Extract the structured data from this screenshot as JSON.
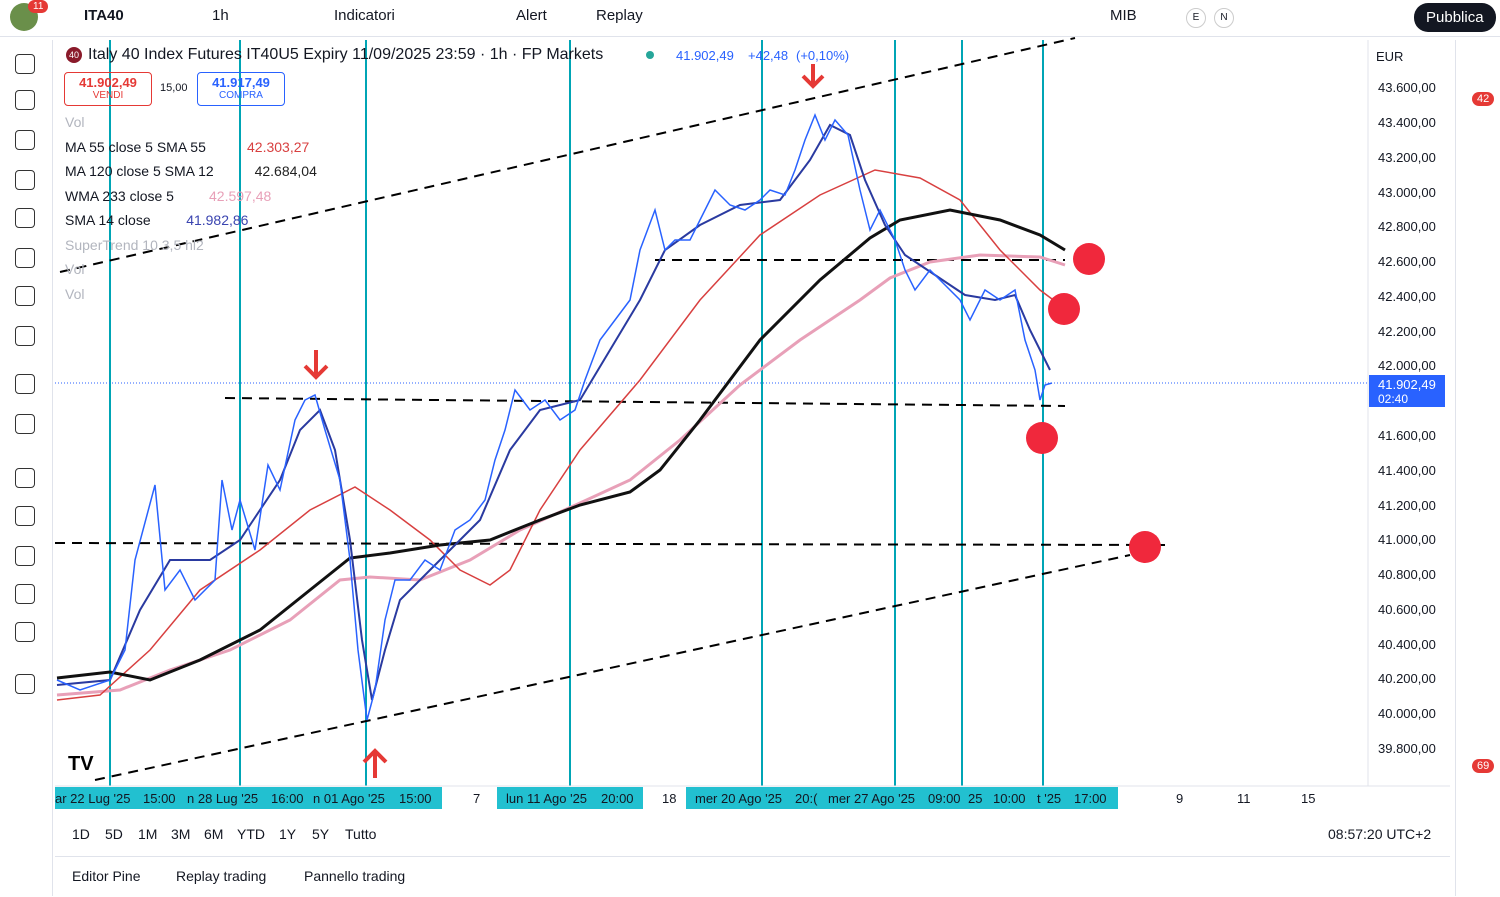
{
  "top_bar": {
    "badge": "11",
    "symbol": "ITA40",
    "interval": "1h",
    "indicators": "Indicatori",
    "alert": "Alert",
    "replay": "Replay",
    "exchange": "MIB",
    "e": "E",
    "n": "N",
    "publish": "Pubblica"
  },
  "legend": {
    "badge": "40",
    "title": "Italy 40 Index Futures IT40U5 Expiry 11/09/2025 23:59 · 1h · FP Markets",
    "last": "41.902,49",
    "change": "+42,48",
    "change_pct": "(+0,10%)",
    "sell_price": "41.902,49",
    "sell": "VENDI",
    "spread": "15,00",
    "buy_price": "41.917,49",
    "buy": "COMPRA",
    "indicators": [
      {
        "name": "Vol"
      },
      {
        "name": "MA 55 close 5 SMA 55",
        "value": "42.303,27",
        "color": "#d84040"
      },
      {
        "name": "MA 120 close 5 SMA 12",
        "value": "42.684,04",
        "color": "#222222"
      },
      {
        "name": "WMA 233 close 5",
        "value": "42.597,48",
        "color": "#e8a0b8"
      },
      {
        "name": "SMA 14 close",
        "value": "41.982,86",
        "color": "#3a44b0"
      },
      {
        "name": "SuperTrend 10 3,5 hl2"
      },
      {
        "name": "Vol"
      },
      {
        "name": "Vol"
      }
    ]
  },
  "price_axis": {
    "currency": "EUR",
    "labels": [
      "43.600,00",
      "43.400,00",
      "43.200,00",
      "43.000,00",
      "42.800,00",
      "42.600,00",
      "42.400,00",
      "42.200,00",
      "42.000,00",
      "41.600,00",
      "41.400,00",
      "41.200,00",
      "41.000,00",
      "40.800,00",
      "40.600,00",
      "40.400,00",
      "40.200,00",
      "40.000,00",
      "39.800,00"
    ],
    "current": "41.902,49",
    "countdown": "02:40"
  },
  "time_axis": [
    "ar 22 Lug '25",
    "15:00",
    "n 28 Lug '25",
    "16:00",
    "n 01 Ago '25",
    "15:00",
    "7",
    "lun 11 Ago '25",
    "20:00",
    "18",
    "mer 20 Ago '25",
    "20:(",
    "mer 27 Ago '25",
    "09:00",
    "25",
    "10:00",
    "t '25",
    "17:00",
    "9",
    "11",
    "15"
  ],
  "ranges": [
    "1D",
    "5D",
    "1M",
    "3M",
    "6M",
    "YTD",
    "1Y",
    "5Y",
    "Tutto"
  ],
  "clock": "08:57:20 UTC+2",
  "bottom_tabs": [
    "Editor Pine",
    "Replay trading",
    "Pannello trading"
  ],
  "sidebar": {
    "badge_alerts": "42",
    "badge_news": "69"
  }
}
